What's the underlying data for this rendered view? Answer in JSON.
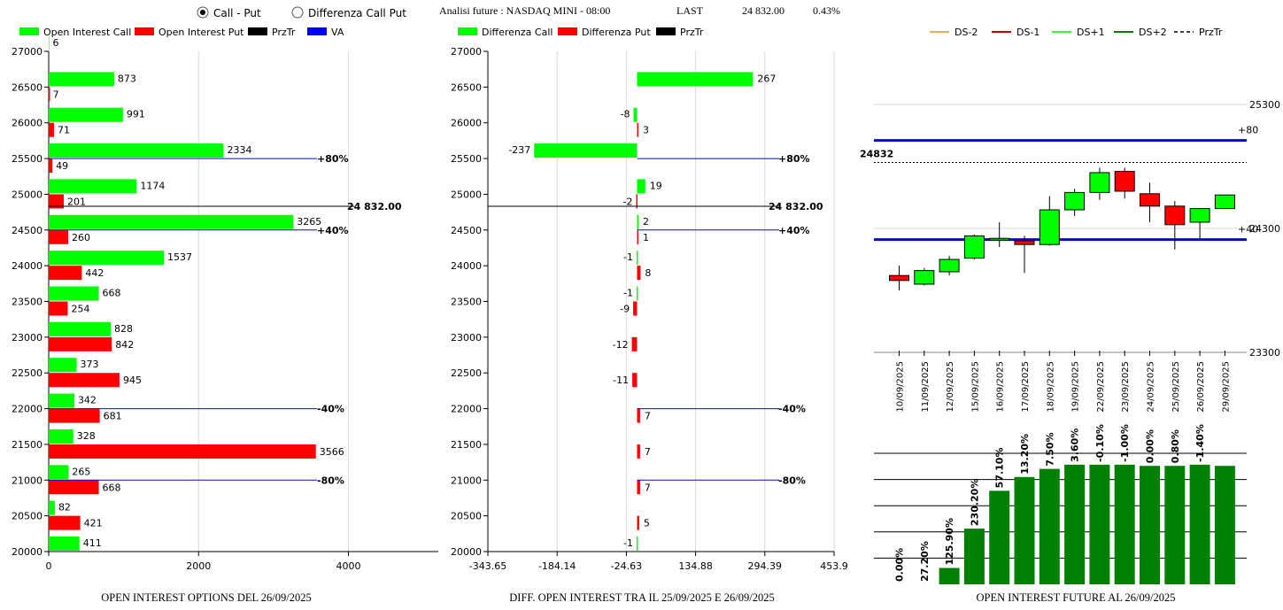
{
  "header": {
    "radio_options": [
      {
        "label": "Call - Put",
        "selected": true
      },
      {
        "label": "Differenza Call Put",
        "selected": false
      }
    ],
    "analysis_label": "Analisi future : NASDAQ MINI - 08:00",
    "last_label": "LAST",
    "last_value": "24 832.00",
    "change_pct": "0.43%"
  },
  "colors": {
    "call": "#00ff00",
    "put": "#ff0000",
    "przTr": "#000000",
    "va": "#0000ff",
    "ds_minus2": "#f4a460",
    "ds_minus1": "#cc0000",
    "ds_plus1": "#33ff33",
    "ds_plus2": "#008000",
    "bar_green": "#008000",
    "grid": "#d8d8d8"
  },
  "chart_data": [
    {
      "id": "oi_options",
      "type": "bar",
      "orientation": "horizontal",
      "title": "OPEN INTEREST OPTIONS DEL 26/09/2025",
      "legend": [
        "Open Interest Call",
        "Open Interest Put",
        "PrzTr",
        "VA"
      ],
      "strikes": [
        27000,
        26500,
        26000,
        25500,
        25000,
        24500,
        24000,
        23500,
        23000,
        22500,
        22000,
        21500,
        21000,
        20500,
        20000
      ],
      "call": [
        6,
        873,
        991,
        2334,
        1174,
        3265,
        1537,
        668,
        828,
        373,
        342,
        328,
        265,
        82,
        411
      ],
      "put": [
        null,
        7,
        71,
        49,
        201,
        260,
        442,
        254,
        842,
        945,
        681,
        3566,
        668,
        421,
        null
      ],
      "xticks": [
        0,
        2000,
        4000
      ],
      "xlim": [
        0,
        5200
      ],
      "ylim": [
        20000,
        27000
      ],
      "prz_value": 24832,
      "prz_label": "24 832.00",
      "va_lines": [
        {
          "y": 25500,
          "label": "+80%"
        },
        {
          "y": 24500,
          "label": "+40%"
        },
        {
          "y": 22000,
          "label": "-40%"
        },
        {
          "y": 21000,
          "label": "-80%"
        }
      ]
    },
    {
      "id": "diff_oi",
      "type": "bar",
      "orientation": "horizontal",
      "title": "DIFF. OPEN INTEREST TRA IL 25/09/2025 E 26/09/2025",
      "legend": [
        "Differenza Call",
        "Differenza Put",
        "PrzTr"
      ],
      "strikes": [
        27000,
        26500,
        26000,
        25500,
        25000,
        24500,
        24000,
        23500,
        23000,
        22500,
        22000,
        21500,
        21000,
        20500,
        20000
      ],
      "call": [
        null,
        267,
        -8,
        -237,
        19,
        2,
        -1,
        -1,
        null,
        null,
        null,
        null,
        null,
        null,
        -1
      ],
      "put": [
        null,
        null,
        3,
        null,
        -2,
        1,
        8,
        -9,
        -12,
        -11,
        7,
        7,
        7,
        5,
        null
      ],
      "xticks": [
        -343.65,
        -184.14,
        -24.63,
        134.88,
        294.39,
        453.9
      ],
      "xlim": [
        -343.65,
        453.9
      ],
      "ylim": [
        20000,
        27000
      ],
      "prz_value": 24832,
      "prz_label": "24 832.00",
      "va_lines": [
        {
          "y": 25500,
          "label": "+80%"
        },
        {
          "y": 24500,
          "label": "+40%"
        },
        {
          "y": 22000,
          "label": "-40%"
        },
        {
          "y": 21000,
          "label": "-80%"
        }
      ]
    },
    {
      "id": "candles",
      "type": "candlestick",
      "legend": [
        "DS-2",
        "DS-1",
        "DS+1",
        "DS+2",
        "PrzTr"
      ],
      "dates": [
        "10/09/2025",
        "11/09/2025",
        "12/09/2025",
        "15/09/2025",
        "16/09/2025",
        "17/09/2025",
        "18/09/2025",
        "19/09/2025",
        "22/09/2025",
        "23/09/2025",
        "24/09/2025",
        "25/09/2025",
        "26/09/2025",
        "29/09/2025"
      ],
      "ohlc": [
        [
          23920,
          24000,
          23800,
          23880
        ],
        [
          23850,
          23980,
          23840,
          23960
        ],
        [
          23950,
          24080,
          23920,
          24050
        ],
        [
          24060,
          24250,
          24050,
          24240
        ],
        [
          24220,
          24350,
          24150,
          24220
        ],
        [
          24200,
          24240,
          23940,
          24170
        ],
        [
          24170,
          24560,
          24160,
          24450
        ],
        [
          24450,
          24620,
          24400,
          24590
        ],
        [
          24590,
          24790,
          24530,
          24750
        ],
        [
          24760,
          24790,
          24540,
          24600
        ],
        [
          24580,
          24670,
          24350,
          24480
        ],
        [
          24480,
          24520,
          24130,
          24330
        ],
        [
          24350,
          24450,
          24220,
          24460
        ],
        [
          24460,
          24570,
          24460,
          24570
        ]
      ],
      "yticks": [
        25300,
        24300,
        23300
      ],
      "ylim": [
        23300,
        25300
      ],
      "prz_value": 24832,
      "prz_label": "24832",
      "va_lines": [
        {
          "y": 25010,
          "label": "+80"
        },
        {
          "y": 24210,
          "label": "+40"
        }
      ]
    },
    {
      "id": "oi_future",
      "type": "bar",
      "title": "OPEN INTEREST FUTURE AL 26/09/2025",
      "categories": [
        "10/09/2025",
        "11/09/2025",
        "12/09/2025",
        "15/09/2025",
        "16/09/2025",
        "17/09/2025",
        "18/09/2025",
        "19/09/2025",
        "22/09/2025",
        "23/09/2025",
        "24/09/2025",
        "25/09/2025",
        "26/09/2025",
        "29/09/2025"
      ],
      "values": [
        0,
        0,
        12.5,
        42.5,
        71.4,
        81.9,
        88.1,
        91.3,
        91.3,
        91.3,
        90.4,
        90.4,
        91.3,
        90.4
      ],
      "labels": [
        "0.00%",
        "27.20%",
        "125.90%",
        "230.20%",
        "57.10%",
        "13.20%",
        "7.50%",
        "3.60%",
        "-0.10%",
        "-1.00%",
        "0.00%",
        "0.80%",
        "-1.40%",
        ""
      ],
      "ylim": [
        0,
        100
      ]
    }
  ]
}
